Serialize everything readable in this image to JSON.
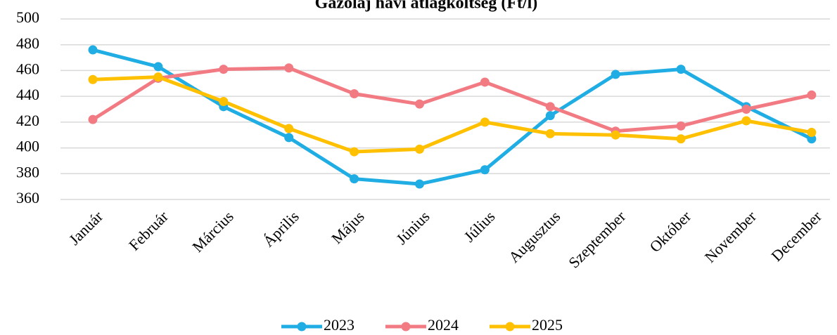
{
  "chart_data": {
    "type": "line",
    "title": "Gázolaj havi átlagköltség (Ft/l)",
    "categories": [
      "Január",
      "Február",
      "Március",
      "Április",
      "Május",
      "Június",
      "Július",
      "Augusztus",
      "Szeptember",
      "Október",
      "November",
      "December"
    ],
    "series": [
      {
        "name": "2023",
        "color": "#1fade4",
        "values": [
          476,
          463,
          432,
          408,
          376,
          372,
          383,
          425,
          457,
          461,
          432,
          407
        ]
      },
      {
        "name": "2024",
        "color": "#f27b83",
        "values": [
          422,
          454,
          461,
          462,
          442,
          434,
          451,
          432,
          413,
          417,
          430,
          441
        ]
      },
      {
        "name": "2025",
        "color": "#ffc000",
        "values": [
          453,
          455,
          436,
          415,
          397,
          399,
          420,
          411,
          410,
          407,
          421,
          412
        ]
      }
    ],
    "ylim": [
      360,
      500
    ],
    "yticks": [
      360,
      380,
      400,
      420,
      440,
      460,
      480,
      500
    ],
    "grid": true,
    "legend": "bottom"
  }
}
